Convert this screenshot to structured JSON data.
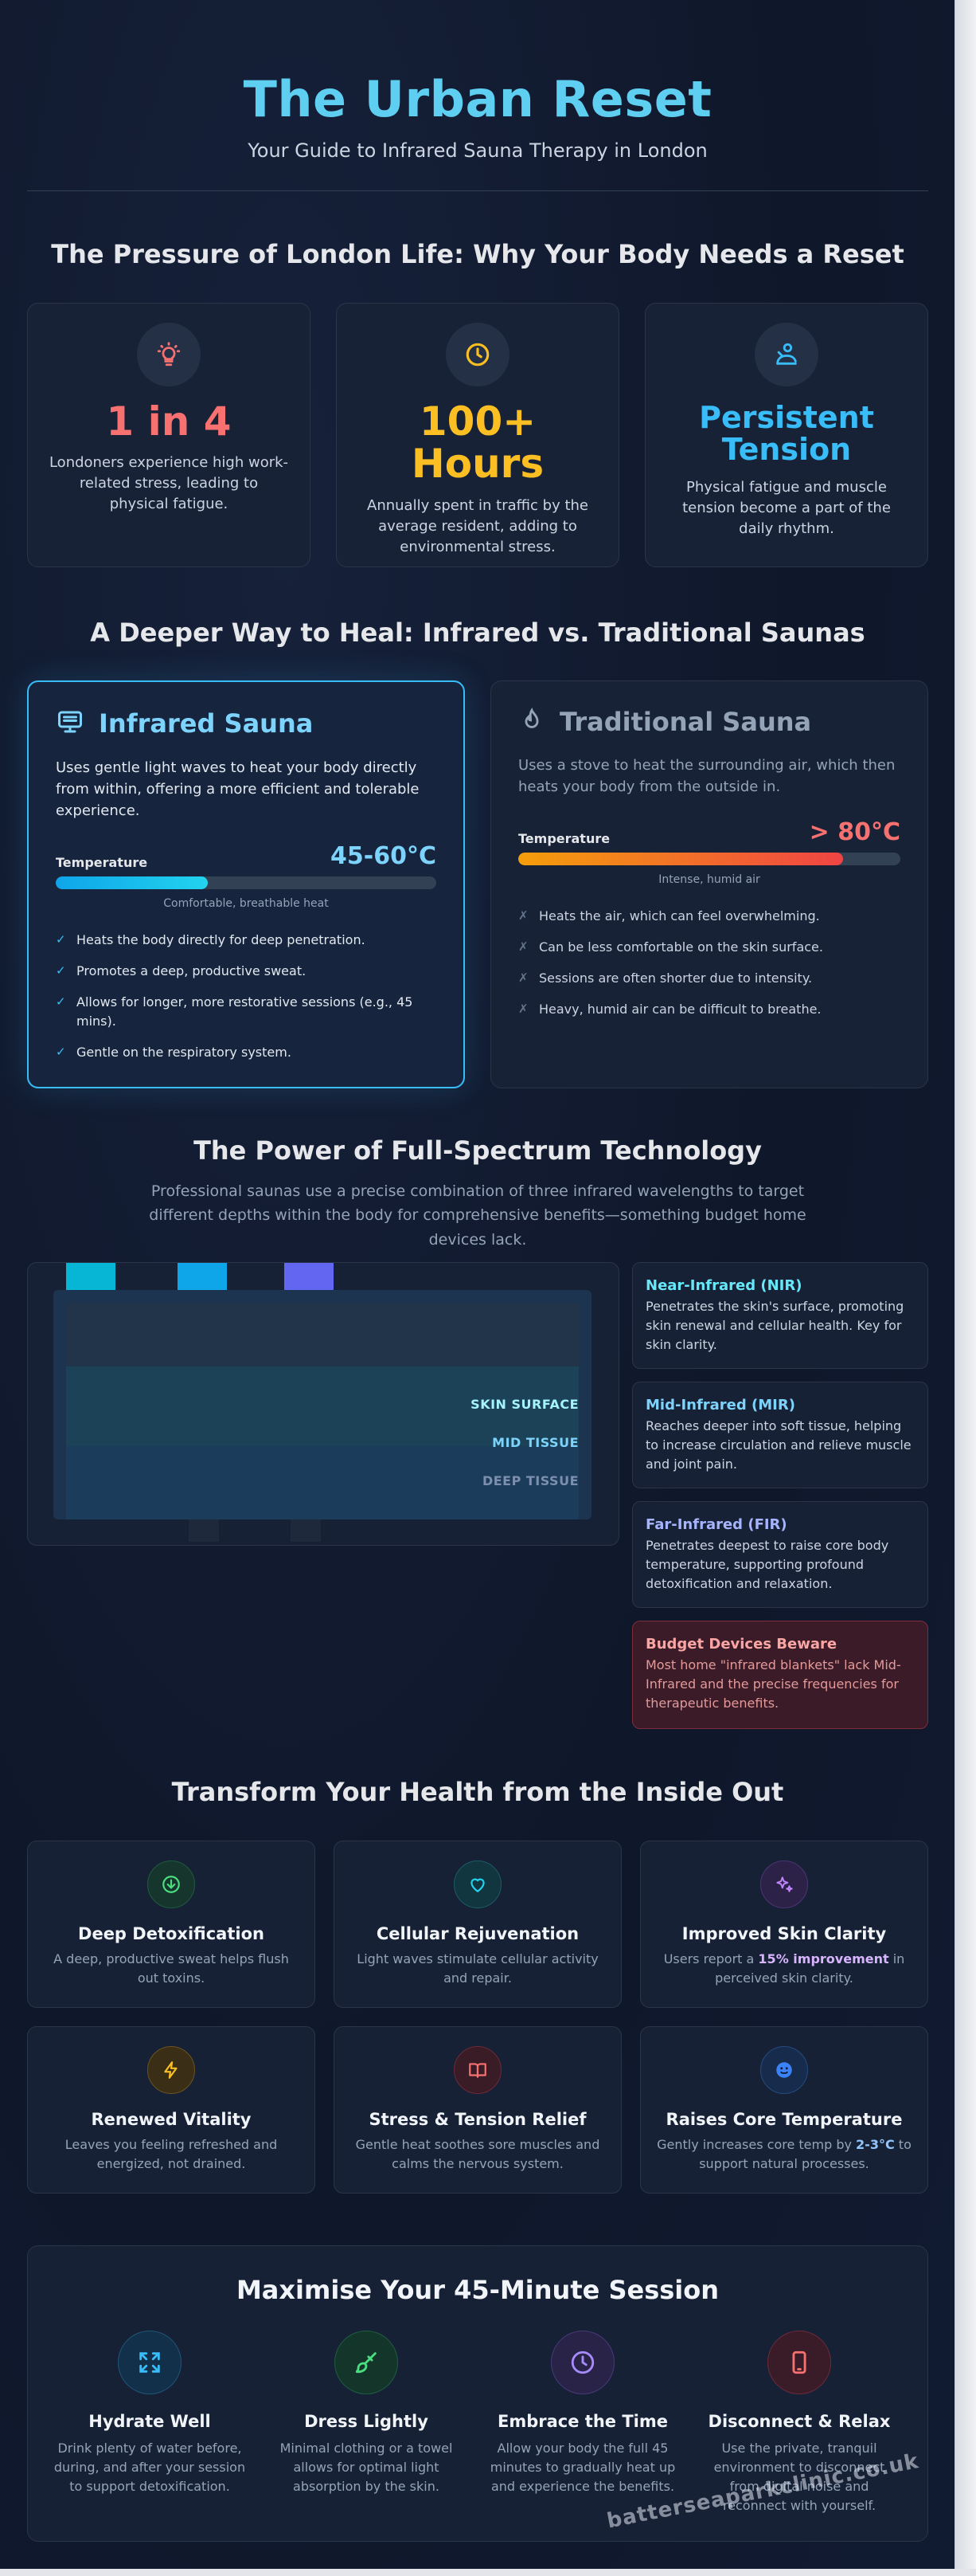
{
  "header": {
    "title": "The Urban Reset",
    "subtitle": "Your Guide to Infrared Sauna Therapy in London"
  },
  "pressure": {
    "title": "The Pressure of London Life: Why Your Body Needs a Reset",
    "stats": [
      {
        "icon": "lightbulb-icon",
        "value": "1 in 4",
        "text": "Londoners experience high work-related stress, leading to physical fatigue.",
        "color": "#f87171"
      },
      {
        "icon": "clock-icon",
        "value_line1": "100+",
        "value_line2": "Hours",
        "text": "Annually spent in traffic by the average resident, adding to environmental stress.",
        "color": "#fbbf24"
      },
      {
        "icon": "person-stretch-icon",
        "value_line1": "Persistent",
        "value_line2": "Tension",
        "text": "Physical fatigue and muscle tension become a part of the daily rhythm.",
        "color": "#38bdf8"
      }
    ]
  },
  "compare": {
    "title": "A Deeper Way to Heal: Infrared vs. Traditional Saunas",
    "infrared": {
      "title": "Infrared Sauna",
      "desc": "Uses gentle light waves to heat your body directly from within, offering a more efficient and tolerable experience.",
      "temp_label": "Temperature",
      "temp_value": "45-60°C",
      "temp_fill": 0.4,
      "bar_note": "Comfortable, breathable heat",
      "features": [
        "Heats the body directly for deep penetration.",
        "Promotes a deep, productive sweat.",
        "Allows for longer, more restorative sessions (e.g., 45 mins).",
        "Gentle on the respiratory system."
      ],
      "mark": "✓",
      "accent": "#7dd3fc"
    },
    "traditional": {
      "title": "Traditional Sauna",
      "desc": "Uses a stove to heat the surrounding air, which then heats your body from the outside in.",
      "temp_label": "Temperature",
      "temp_value": "> 80°C",
      "temp_fill": 0.85,
      "bar_note": "Intense, humid air",
      "features": [
        "Heats the air, which can feel overwhelming.",
        "Can be less comfortable on the skin surface.",
        "Sessions are often shorter due to intensity.",
        "Heavy, humid air can be difficult to breathe."
      ],
      "mark": "✗",
      "accent": "#94a3b8"
    }
  },
  "spectrum": {
    "title": "The Power of Full-Spectrum Technology",
    "desc": "Professional saunas use a precise combination of three infrared wavelengths to target different depths within the body for comprehensive benefits—something budget home devices lack.",
    "layers": [
      "SKIN SURFACE",
      "MID TISSUE",
      "DEEP TISSUE"
    ],
    "cards": [
      {
        "title": "Near-Infrared (NIR)",
        "text": "Penetrates the skin's surface, promoting skin renewal and cellular health. Key for skin clarity.",
        "color": "#67e8f9"
      },
      {
        "title": "Mid-Infrared (MIR)",
        "text": "Reaches deeper into soft tissue, helping to increase circulation and relieve muscle and joint pain.",
        "color": "#7dd3fc"
      },
      {
        "title": "Far-Infrared (FIR)",
        "text": "Penetrates deepest to raise core body temperature, supporting profound detoxification and relaxation.",
        "color": "#a5b4fc"
      },
      {
        "title": "Budget Devices Beware",
        "text": "Most home \"infrared blankets\" lack Mid-Infrared and the precise frequencies for therapeutic benefits.",
        "color": "#fca5a5"
      }
    ]
  },
  "benefits": {
    "title": "Transform Your Health from the Inside Out",
    "items": [
      {
        "icon": "download-circle-icon",
        "title": "Deep Detoxification",
        "text": "A deep, productive sweat helps flush out toxins.",
        "color": "#4ade80"
      },
      {
        "icon": "heart-icon",
        "title": "Cellular Rejuvenation",
        "text": "Light waves stimulate cellular activity and repair.",
        "color": "#22d3ee"
      },
      {
        "icon": "sparkles-icon",
        "title": "Improved Skin Clarity",
        "text_before": "Users report a ",
        "highlight": "15% improvement",
        "text_after": " in perceived skin clarity.",
        "color": "#c084fc"
      },
      {
        "icon": "lightning-icon",
        "title": "Renewed Vitality",
        "text": "Leaves you feeling refreshed and energized, not drained.",
        "color": "#fbbf24"
      },
      {
        "icon": "book-open-icon",
        "title": "Stress & Tension Relief",
        "text": "Gentle heat soothes sore muscles and calms the nervous system.",
        "color": "#f87171"
      },
      {
        "icon": "smile-icon",
        "title": "Raises Core Temperature",
        "text_before": "Gently increases core temp by ",
        "highlight": "2-3°C",
        "text_after": " to support natural processes.",
        "color": "#60a5fa"
      }
    ]
  },
  "session": {
    "title": "Maximise Your 45-Minute Session",
    "tips": [
      {
        "icon": "expand-arrows-icon",
        "title": "Hydrate Well",
        "text": "Drink plenty of water before, during, and after your session to support detoxification.",
        "color": "#38bdf8"
      },
      {
        "icon": "brush-icon",
        "title": "Dress Lightly",
        "text": "Minimal clothing or a towel allows for optimal light absorption by the skin.",
        "color": "#4ade80"
      },
      {
        "icon": "clock-icon",
        "title": "Embrace the Time",
        "text": "Allow your body the full 45 minutes to gradually heat up and experience the benefits.",
        "color": "#a78bfa"
      },
      {
        "icon": "phone-icon",
        "title": "Disconnect & Relax",
        "text": "Use the private, tranquil environment to disconnect from digital noise and reconnect with yourself.",
        "color": "#f87171"
      }
    ]
  },
  "watermark": "batterseaparkclinic.co.uk"
}
